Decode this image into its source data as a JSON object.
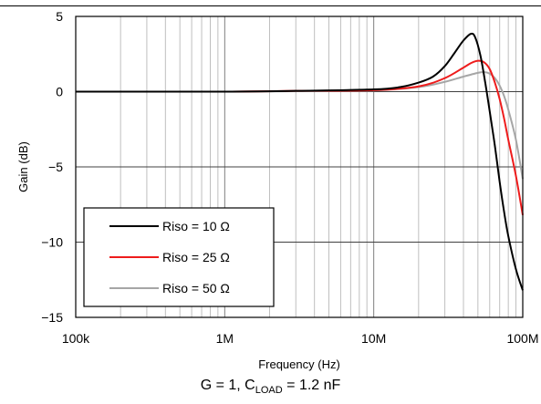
{
  "chart_data": {
    "type": "line",
    "xlabel": "Frequency (Hz)",
    "ylabel": "Gain (dB)",
    "xscale": "log",
    "xlim": [
      100000,
      100000000
    ],
    "ylim": [
      -15,
      5
    ],
    "xticks": [
      100000,
      1000000,
      10000000,
      100000000
    ],
    "xtick_labels": [
      "100k",
      "1M",
      "10M",
      "100M"
    ],
    "yticks": [
      5,
      0,
      -5,
      -10,
      -15
    ],
    "ytick_labels": [
      "5",
      "0",
      "−5",
      "−10",
      "−15"
    ],
    "grid": true,
    "legend_position": "bottom-left",
    "series": [
      {
        "name": "Riso = 10 Ω",
        "color": "#000000",
        "x": [
          100000,
          1000000,
          3000000,
          10000000,
          15000000,
          20000000,
          25000000,
          30000000,
          35000000,
          40000000,
          45000000,
          48000000,
          52000000,
          56000000,
          60000000,
          65000000,
          70000000,
          75000000,
          80000000,
          90000000,
          100000000
        ],
        "y": [
          0,
          0,
          0.05,
          0.15,
          0.3,
          0.6,
          1.0,
          1.7,
          2.6,
          3.4,
          3.85,
          3.6,
          2.4,
          0.6,
          -1.3,
          -3.6,
          -6.0,
          -8.0,
          -9.6,
          -11.8,
          -13.2
        ]
      },
      {
        "name": "Riso = 25 Ω",
        "color": "#ee1c1c",
        "x": [
          100000,
          1000000,
          3000000,
          10000000,
          20000000,
          30000000,
          40000000,
          45000000,
          50000000,
          55000000,
          60000000,
          65000000,
          70000000,
          75000000,
          80000000,
          90000000,
          100000000
        ],
        "y": [
          0,
          0,
          0.05,
          0.1,
          0.35,
          0.9,
          1.6,
          1.9,
          2.05,
          1.95,
          1.5,
          0.6,
          -0.5,
          -1.8,
          -3.2,
          -5.6,
          -8.2
        ]
      },
      {
        "name": "Riso = 50 Ω",
        "color": "#a6a6a6",
        "x": [
          100000,
          1000000,
          3000000,
          10000000,
          20000000,
          30000000,
          40000000,
          50000000,
          55000000,
          60000000,
          65000000,
          70000000,
          75000000,
          80000000,
          90000000,
          100000000
        ],
        "y": [
          0,
          0,
          0.03,
          0.08,
          0.3,
          0.65,
          1.0,
          1.25,
          1.3,
          1.2,
          0.9,
          0.4,
          -0.3,
          -1.2,
          -3.2,
          -5.8
        ]
      }
    ]
  },
  "caption": {
    "prefix": "G = 1, C",
    "sub": "LOAD",
    "suffix": " = 1.2 nF"
  }
}
